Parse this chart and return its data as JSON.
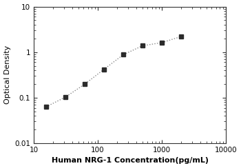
{
  "x_values": [
    15.6,
    31.25,
    62.5,
    125,
    250,
    500,
    1000,
    2000
  ],
  "y_values": [
    0.063,
    0.103,
    0.198,
    0.42,
    0.88,
    1.38,
    1.62,
    2.2
  ],
  "xlim": [
    10,
    10000
  ],
  "ylim": [
    0.01,
    10
  ],
  "xlabel": "Human NRG-1 Concentration(pg/mL)",
  "ylabel": "Optical Density",
  "xticks": [
    10,
    100,
    1000,
    10000
  ],
  "xtick_labels": [
    "10",
    "100",
    "1000",
    "10000"
  ],
  "yticks": [
    0.01,
    0.1,
    1,
    10
  ],
  "ytick_labels": [
    "0.01",
    "0.1",
    "1",
    "10"
  ],
  "marker": "s",
  "marker_color": "#2b2b2b",
  "marker_size": 4,
  "line_color": "#888888",
  "line_style": "dotted",
  "line_width": 1.0,
  "label_fontsize": 8,
  "tick_fontsize": 7.5,
  "background_color": "#ffffff"
}
